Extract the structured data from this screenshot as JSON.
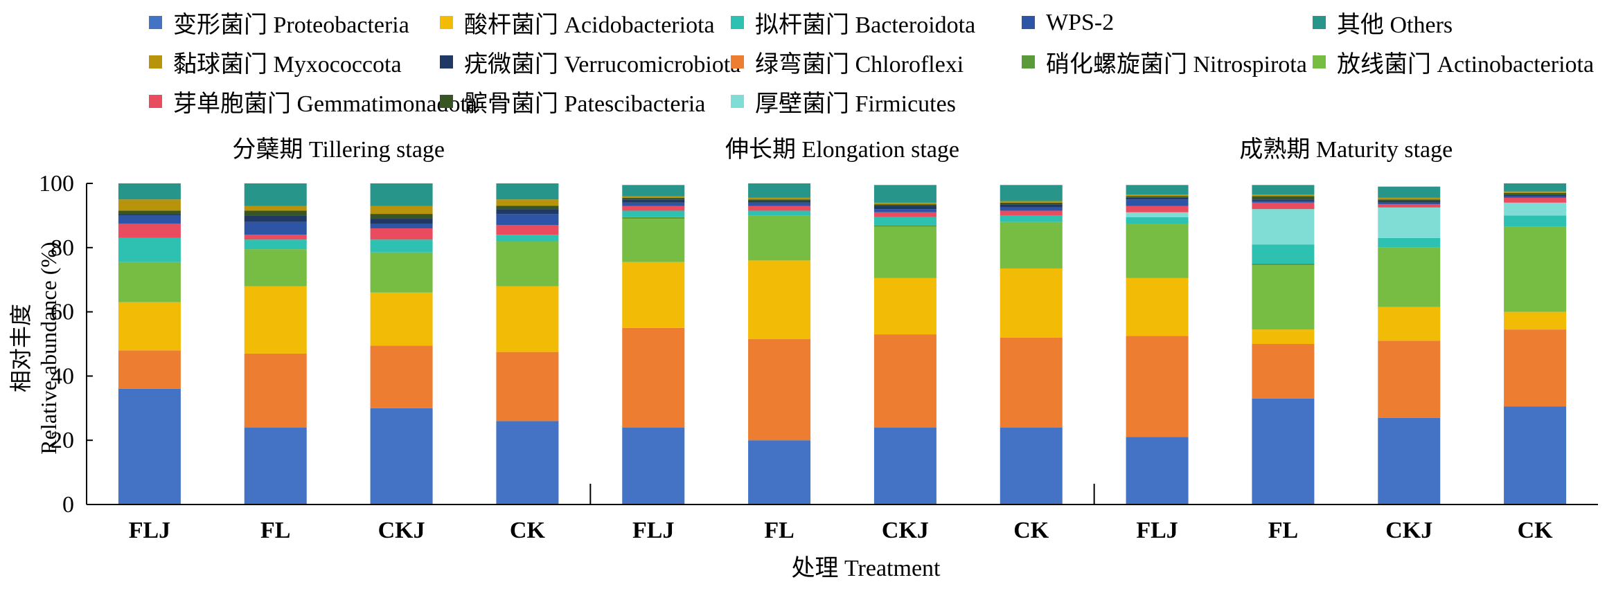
{
  "chart_data": {
    "type": "bar",
    "stacked": true,
    "panels": [
      {
        "title": "分蘖期 Tillering stage"
      },
      {
        "title": "伸长期 Elongation stage"
      },
      {
        "title": "成熟期 Maturity stage"
      }
    ],
    "categories": [
      "FLJ",
      "FL",
      "CKJ",
      "CK",
      "FLJ",
      "FL",
      "CKJ",
      "CK",
      "FLJ",
      "FL",
      "CKJ",
      "CK"
    ],
    "xlabel": "处理 Treatment",
    "ylabel_cn": "相对丰度",
    "ylabel_en": "Relative abundance (%)",
    "ylim": [
      0,
      100
    ],
    "yticks": [
      0,
      20,
      40,
      60,
      80,
      100
    ],
    "series": [
      {
        "name": "变形菌门 Proteobacteria",
        "color": "#4472C4",
        "values": [
          36,
          24,
          30,
          26,
          24,
          20,
          24,
          24,
          21,
          33,
          27,
          30.5
        ]
      },
      {
        "name": "绿弯菌门 Chloroflexi",
        "color": "#ED7D31",
        "values": [
          12,
          23,
          19.5,
          21.5,
          31,
          31.5,
          29,
          28,
          31.5,
          17,
          24,
          24
        ]
      },
      {
        "name": "酸杆菌门 Acidobacteriota",
        "color": "#F2BB05",
        "values": [
          15,
          21,
          16.5,
          20.5,
          20.5,
          24.5,
          17.5,
          21.5,
          18,
          4.5,
          10.5,
          5.5
        ]
      },
      {
        "name": "放线菌门 Actinobacteriota",
        "color": "#77BC43",
        "values": [
          12.5,
          11.5,
          12.5,
          14,
          13.5,
          14,
          16,
          14.5,
          17,
          20,
          18.5,
          26.5
        ]
      },
      {
        "name": "硝化螺旋菌门 Nitrospirota",
        "color": "#5B9A3B",
        "values": [
          0,
          0,
          0,
          0,
          0.5,
          0,
          0.5,
          0,
          0,
          0.5,
          0,
          0
        ]
      },
      {
        "name": "拟杆菌门 Bacteroidota",
        "color": "#2EC0B0",
        "values": [
          7.5,
          3,
          4,
          2,
          2,
          1.5,
          2.5,
          2,
          2,
          6,
          3,
          3.5
        ]
      },
      {
        "name": "厚壁菌门 Firmicutes",
        "color": "#80DDD5",
        "values": [
          0,
          0,
          0,
          0,
          0,
          0,
          0,
          0,
          1.5,
          11,
          9.5,
          4
        ]
      },
      {
        "name": "芽单胞菌门 Gemmatimonadota",
        "color": "#E84C5E",
        "values": [
          4.5,
          1.5,
          3.5,
          3,
          1.5,
          1.5,
          1.5,
          1.5,
          2,
          2,
          1,
          1.5
        ]
      },
      {
        "name": "WPS-2",
        "color": "#2E54A6",
        "values": [
          2.5,
          4,
          1.5,
          3.5,
          1,
          1,
          1,
          1,
          2,
          0.5,
          0.5,
          0.5
        ]
      },
      {
        "name": "疣微菌门 Verrucomicrobiota",
        "color": "#203864",
        "values": [
          0.5,
          2,
          1.5,
          1.5,
          1,
          0.5,
          1,
          1,
          0.5,
          0.5,
          0.5,
          0.5
        ]
      },
      {
        "name": "髌骨菌门 Patescibacteria",
        "color": "#375623",
        "values": [
          1,
          1.5,
          1.5,
          1,
          0.5,
          0.5,
          0.5,
          0.5,
          0.5,
          1,
          0.5,
          0.5
        ]
      },
      {
        "name": "黏球菌门 Myxococcota",
        "color": "#B8930C",
        "values": [
          3.5,
          1.5,
          2.5,
          2,
          0.5,
          0.5,
          0.5,
          0.5,
          0.5,
          0.5,
          0.5,
          0.5
        ]
      },
      {
        "name": "其他 Others",
        "color": "#27958A",
        "values": [
          5,
          7,
          7,
          5,
          3.5,
          4.5,
          5.5,
          5,
          3,
          3,
          3.5,
          2.5
        ]
      }
    ]
  },
  "legend_order": [
    "变形菌门 Proteobacteria",
    "酸杆菌门 Acidobacteriota",
    "拟杆菌门 Bacteroidota",
    "WPS-2",
    "其他 Others",
    "黏球菌门 Myxococcota",
    "疣微菌门 Verrucomicrobiota",
    "绿弯菌门 Chloroflexi",
    "硝化螺旋菌门 Nitrospirota",
    "放线菌门 Actinobacteriota",
    "芽单胞菌门 Gemmatimonadota",
    "髌骨菌门 Patescibacteria",
    "厚壁菌门 Firmicutes"
  ]
}
